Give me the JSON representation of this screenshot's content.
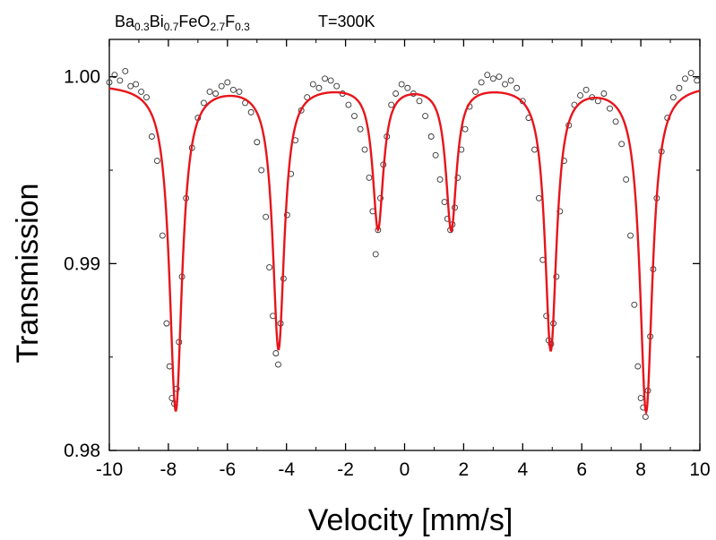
{
  "chart_data": {
    "type": "scatter",
    "annotation": {
      "parts": [
        {
          "text": "Ba",
          "sub": false
        },
        {
          "text": "0.3",
          "sub": true
        },
        {
          "text": "Bi",
          "sub": false
        },
        {
          "text": "0.7",
          "sub": true
        },
        {
          "text": "FeO",
          "sub": false
        },
        {
          "text": "2.7",
          "sub": true
        },
        {
          "text": "F",
          "sub": false
        },
        {
          "text": "0.3",
          "sub": true
        }
      ],
      "temperature": "T=300K"
    },
    "xlabel": "Velocity [mm/s]",
    "ylabel": "Transmission",
    "xlim": [
      -10,
      10
    ],
    "ylim": [
      0.98,
      1.002
    ],
    "x_ticks": [
      -10,
      -8,
      -6,
      -4,
      -2,
      0,
      2,
      4,
      6,
      8,
      10
    ],
    "x_tick_labels": [
      "-10",
      "-8",
      "-6",
      "-4",
      "-2",
      "0",
      "2",
      "4",
      "6",
      "8",
      "10"
    ],
    "y_ticks": [
      0.98,
      0.99,
      1.0
    ],
    "y_tick_labels": [
      "0.98",
      "0.99",
      "1.00"
    ],
    "colors": {
      "fit": "#e8141b",
      "data": "#333333",
      "axes": "#000000"
    },
    "series": [
      {
        "style": "open-circles",
        "x": [
          -10.0,
          -9.82,
          -9.64,
          -9.46,
          -9.28,
          -9.1,
          -8.92,
          -8.74,
          -8.56,
          -8.38,
          -8.2,
          -8.06,
          -7.96,
          -7.88,
          -7.8,
          -7.72,
          -7.64,
          -7.54,
          -7.4,
          -7.2,
          -7.0,
          -6.8,
          -6.6,
          -6.4,
          -6.2,
          -6.0,
          -5.8,
          -5.6,
          -5.4,
          -5.2,
          -5.0,
          -4.85,
          -4.7,
          -4.58,
          -4.46,
          -4.36,
          -4.28,
          -4.2,
          -4.1,
          -3.98,
          -3.85,
          -3.7,
          -3.5,
          -3.3,
          -3.1,
          -2.9,
          -2.7,
          -2.5,
          -2.3,
          -2.1,
          -1.9,
          -1.7,
          -1.5,
          -1.35,
          -1.2,
          -1.08,
          -0.98,
          -0.9,
          -0.82,
          -0.72,
          -0.6,
          -0.45,
          -0.3,
          -0.1,
          0.1,
          0.3,
          0.5,
          0.7,
          0.9,
          1.05,
          1.2,
          1.35,
          1.45,
          1.55,
          1.62,
          1.7,
          1.8,
          1.92,
          2.05,
          2.2,
          2.4,
          2.6,
          2.8,
          3.0,
          3.2,
          3.4,
          3.6,
          3.8,
          4.0,
          4.2,
          4.4,
          4.55,
          4.68,
          4.8,
          4.88,
          4.96,
          5.04,
          5.14,
          5.26,
          5.4,
          5.56,
          5.75,
          5.95,
          6.15,
          6.35,
          6.55,
          6.75,
          6.95,
          7.15,
          7.35,
          7.5,
          7.65,
          7.78,
          7.9,
          8.0,
          8.08,
          8.16,
          8.24,
          8.32,
          8.42,
          8.54,
          8.7,
          8.9,
          9.1,
          9.3,
          9.5,
          9.7,
          9.9
        ],
        "y": [
          0.9997,
          1.0001,
          0.9998,
          1.0003,
          0.9995,
          0.9996,
          0.9992,
          0.9989,
          0.9968,
          0.9955,
          0.9915,
          0.9868,
          0.9845,
          0.9828,
          0.9825,
          0.9833,
          0.9858,
          0.9893,
          0.9935,
          0.9962,
          0.9978,
          0.9986,
          0.9992,
          0.9991,
          0.9995,
          0.9997,
          0.9993,
          0.9992,
          0.9986,
          0.9981,
          0.9965,
          0.995,
          0.9925,
          0.9898,
          0.9872,
          0.9852,
          0.9846,
          0.9868,
          0.9892,
          0.9926,
          0.9948,
          0.9966,
          0.9982,
          0.9989,
          0.9996,
          0.9994,
          0.9999,
          0.9998,
          0.9995,
          0.9991,
          0.9985,
          0.9979,
          0.9972,
          0.9961,
          0.9946,
          0.9928,
          0.9905,
          0.9918,
          0.9935,
          0.9953,
          0.9968,
          0.9985,
          0.9991,
          0.9996,
          0.9994,
          0.9991,
          0.9987,
          0.9979,
          0.9968,
          0.9958,
          0.9945,
          0.9933,
          0.9924,
          0.9918,
          0.9921,
          0.993,
          0.9946,
          0.9961,
          0.9972,
          0.9984,
          0.9992,
          0.9997,
          1.0001,
          0.9999,
          1.0,
          0.9996,
          0.9998,
          0.9994,
          0.9987,
          0.9978,
          0.9961,
          0.9935,
          0.9902,
          0.9872,
          0.9859,
          0.9857,
          0.9868,
          0.9893,
          0.9928,
          0.9955,
          0.9974,
          0.9985,
          0.999,
          0.9993,
          0.9989,
          0.9987,
          0.9991,
          0.9983,
          0.9976,
          0.9964,
          0.9945,
          0.9915,
          0.9878,
          0.9845,
          0.9828,
          0.9823,
          0.9818,
          0.9832,
          0.9861,
          0.9897,
          0.9935,
          0.996,
          0.9978,
          0.9989,
          0.9994,
          0.9999,
          1.0002,
          0.9998
        ]
      },
      {
        "style": "fit-line",
        "baseline": 0.99965,
        "peaks": [
          {
            "center": -7.75,
            "depth": 0.01745,
            "hwhm": 0.26
          },
          {
            "center": -4.27,
            "depth": 0.0141,
            "hwhm": 0.24
          },
          {
            "center": -0.9,
            "depth": 0.00765,
            "hwhm": 0.22
          },
          {
            "center": 1.58,
            "depth": 0.0077,
            "hwhm": 0.22
          },
          {
            "center": 4.95,
            "depth": 0.01415,
            "hwhm": 0.24
          },
          {
            "center": 8.18,
            "depth": 0.0175,
            "hwhm": 0.26
          }
        ]
      }
    ]
  }
}
